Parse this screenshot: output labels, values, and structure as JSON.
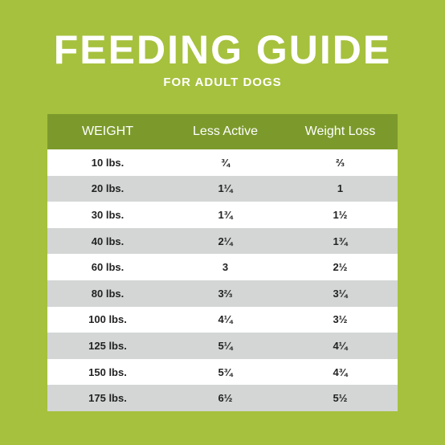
{
  "header": {
    "title": "FEEDING GUIDE",
    "subtitle": "FOR ADULT DOGS"
  },
  "table": {
    "columns": [
      "WEIGHT",
      "Less Active",
      "Weight Loss"
    ],
    "rows": [
      [
        "10 lbs.",
        "¾",
        "⅔"
      ],
      [
        "20 lbs.",
        "1¼",
        "1"
      ],
      [
        "30 lbs.",
        "1¾",
        "1½"
      ],
      [
        "40 lbs.",
        "2¼",
        "1¾"
      ],
      [
        "60 lbs.",
        "3",
        "2½"
      ],
      [
        "80 lbs.",
        "3⅔",
        "3¼"
      ],
      [
        "100 lbs.",
        "4¼",
        "3½"
      ],
      [
        "125 lbs.",
        "5¼",
        "4¼"
      ],
      [
        "150 lbs.",
        "5¾",
        "4¾"
      ],
      [
        "175 lbs.",
        "6½",
        "5½"
      ]
    ]
  },
  "colors": {
    "background": "#a6c13d",
    "header_band": "#7c9a2c",
    "row_light": "#ffffff",
    "row_shaded": "#d4d6d6"
  }
}
